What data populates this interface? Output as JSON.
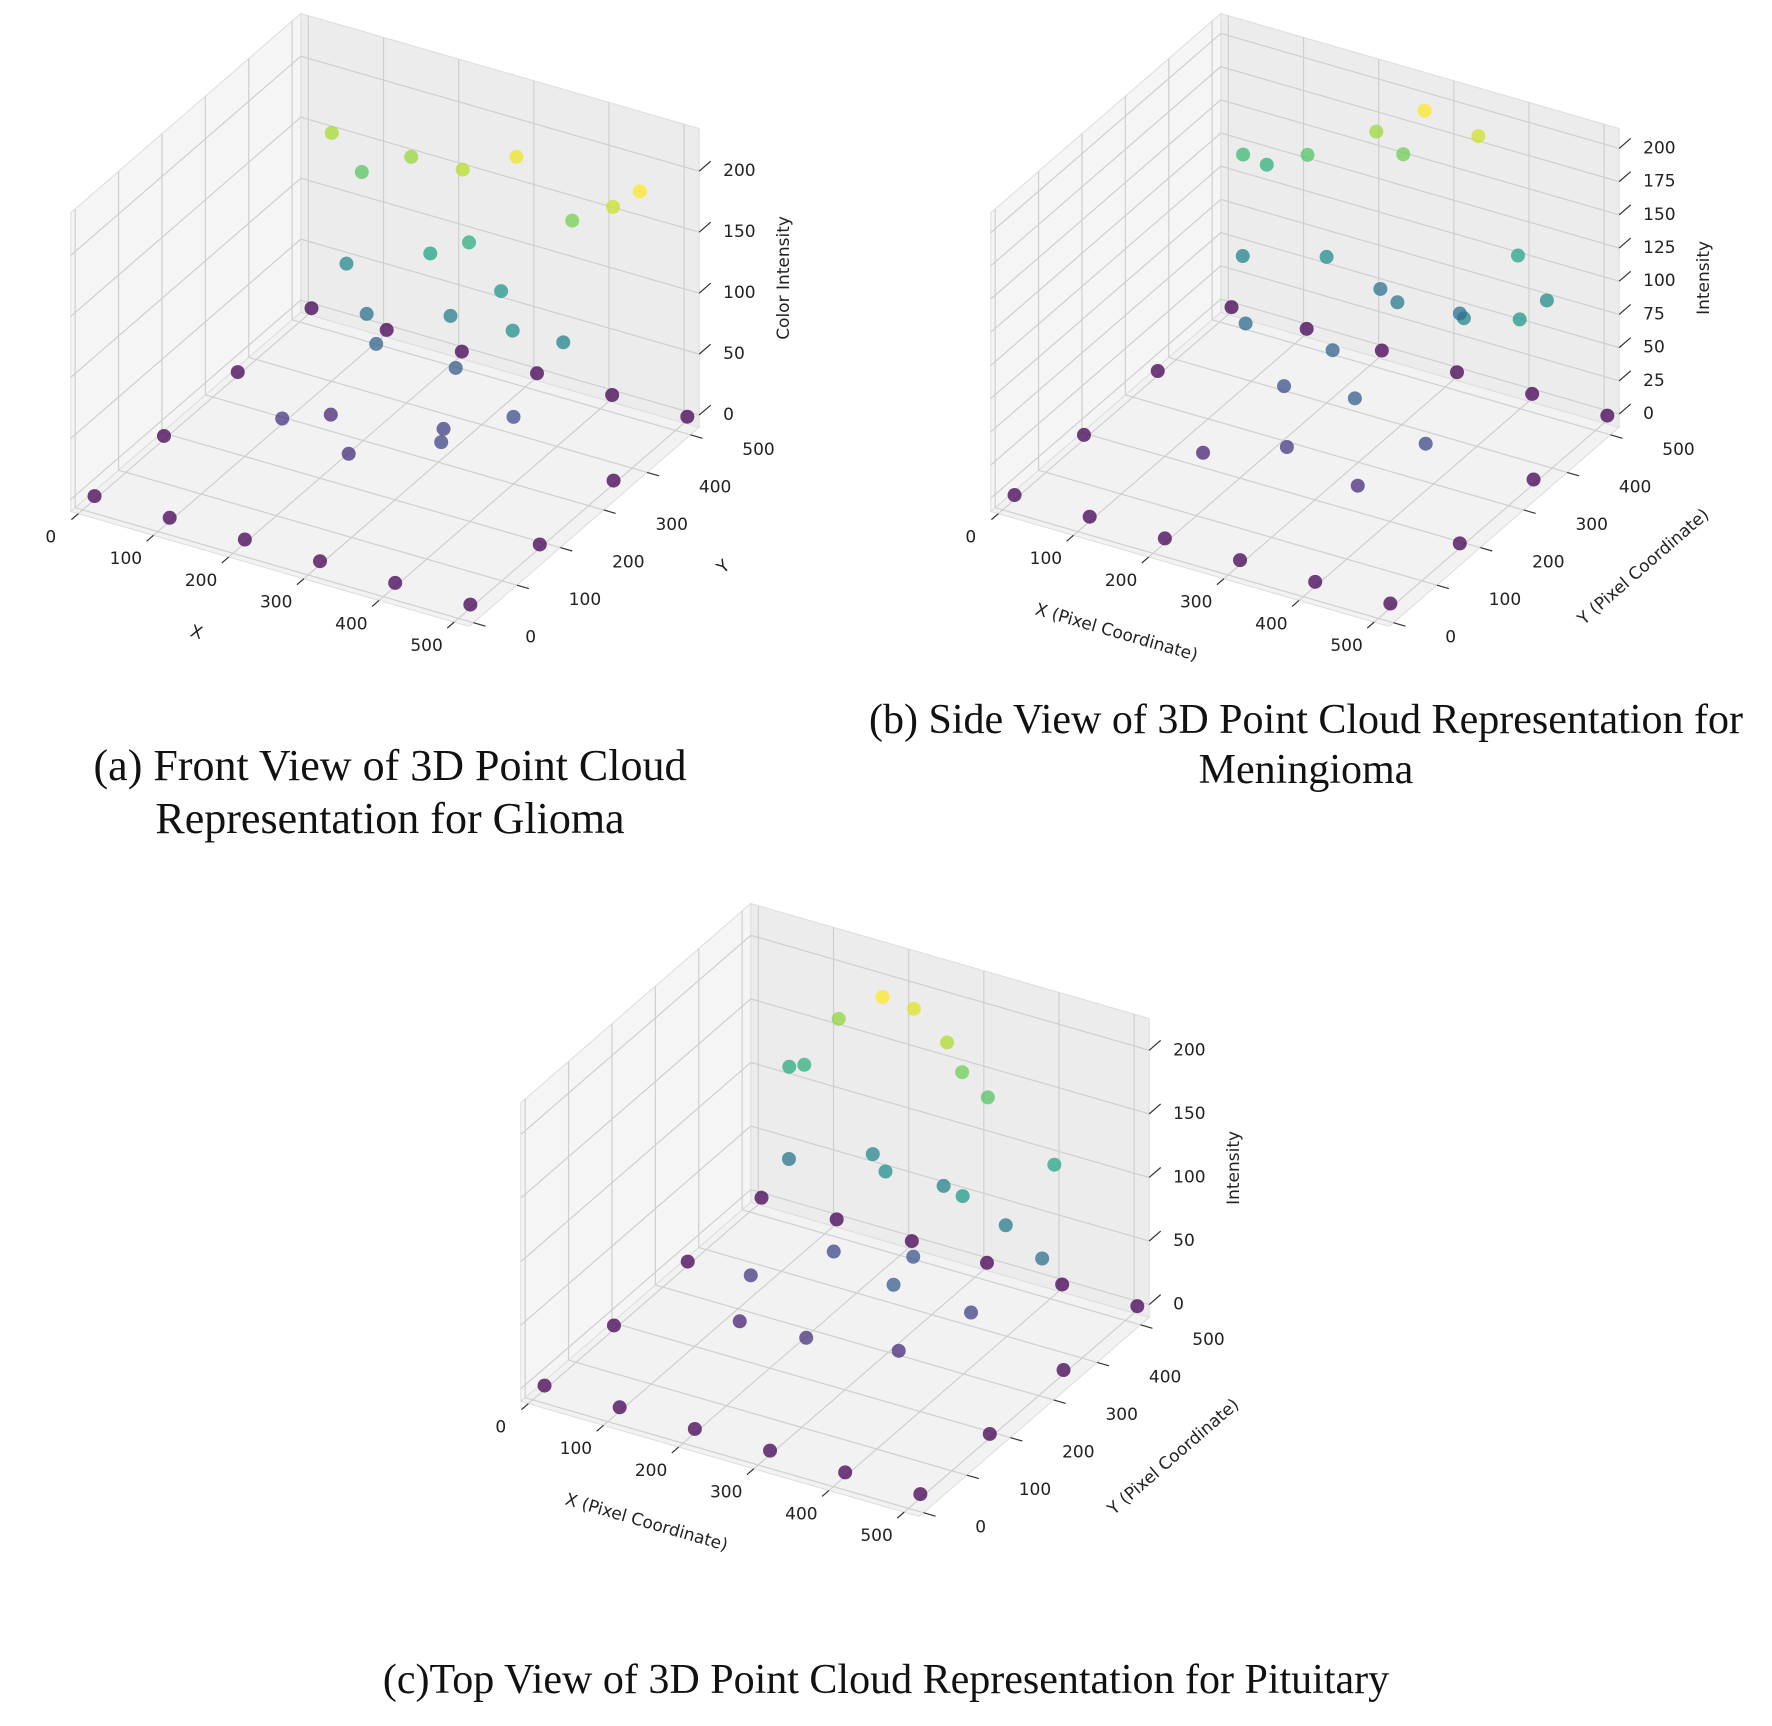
{
  "chart_data": [
    {
      "type": "scatter3d",
      "caption": "(a)  Front View of 3D Point Cloud Representation for Glioma",
      "xlabel": "X",
      "ylabel": "Y",
      "zlabel": "Color Intensity",
      "colormap": "viridis",
      "xlim": [
        -10,
        520
      ],
      "ylim": [
        -10,
        520
      ],
      "zlim": [
        -10,
        235
      ],
      "xticks": [
        0,
        100,
        200,
        300,
        400,
        500
      ],
      "yticks": [
        0,
        100,
        200,
        300,
        400,
        500
      ],
      "zticks": [
        0,
        50,
        100,
        150,
        200
      ],
      "x": [
        10,
        110,
        210,
        310,
        410,
        510,
        10,
        510,
        10,
        510,
        10,
        110,
        210,
        310,
        410,
        510,
        150,
        250,
        350,
        200,
        300,
        400,
        180,
        330,
        120,
        220,
        320,
        420,
        170,
        270,
        370,
        100,
        160,
        240,
        300,
        380,
        440,
        260,
        60,
        470
      ],
      "y": [
        10,
        10,
        10,
        10,
        10,
        10,
        170,
        170,
        340,
        340,
        510,
        510,
        510,
        510,
        510,
        510,
        200,
        180,
        220,
        330,
        340,
        300,
        260,
        260,
        400,
        420,
        410,
        380,
        360,
        380,
        350,
        470,
        480,
        460,
        480,
        470,
        460,
        440,
        470,
        470
      ],
      "z": [
        0,
        0,
        0,
        0,
        0,
        0,
        0,
        0,
        0,
        0,
        0,
        0,
        0,
        0,
        0,
        0,
        30,
        25,
        40,
        60,
        55,
        45,
        20,
        35,
        90,
        110,
        100,
        85,
        70,
        80,
        95,
        140,
        160,
        170,
        185,
        150,
        175,
        120,
        165,
        190
      ]
    },
    {
      "type": "scatter3d",
      "caption": "(b) Side View of 3D Point Cloud Representation for  Meningioma",
      "xlabel": "X (Pixel Coordinate)",
      "ylabel": "Y (Pixel Coordinate)",
      "zlabel": "Intensity",
      "colormap": "viridis",
      "xlim": [
        -10,
        520
      ],
      "ylim": [
        -10,
        520
      ],
      "zlim": [
        -10,
        215
      ],
      "xticks": [
        0,
        100,
        200,
        300,
        400,
        500
      ],
      "yticks": [
        0,
        100,
        200,
        300,
        400,
        500
      ],
      "zticks": [
        0,
        25,
        50,
        75,
        100,
        125,
        150,
        175,
        200
      ],
      "x": [
        10,
        110,
        210,
        310,
        410,
        510,
        10,
        510,
        10,
        510,
        10,
        110,
        210,
        310,
        410,
        510,
        180,
        280,
        380,
        230,
        330,
        430,
        150,
        260,
        100,
        200,
        300,
        400,
        480,
        260,
        360,
        80,
        140,
        220,
        290,
        350,
        420,
        470,
        60,
        250
      ],
      "y": [
        10,
        10,
        10,
        10,
        10,
        10,
        170,
        170,
        340,
        340,
        510,
        510,
        510,
        510,
        510,
        510,
        150,
        170,
        160,
        250,
        240,
        230,
        300,
        310,
        380,
        400,
        390,
        370,
        360,
        420,
        430,
        470,
        460,
        480,
        470,
        490,
        460,
        440,
        450,
        490
      ],
      "z": [
        0,
        0,
        0,
        0,
        0,
        0,
        0,
        0,
        0,
        0,
        0,
        0,
        0,
        0,
        0,
        0,
        20,
        35,
        25,
        50,
        60,
        45,
        70,
        65,
        90,
        100,
        85,
        95,
        110,
        80,
        75,
        130,
        150,
        175,
        205,
        190,
        120,
        100,
        140,
        160
      ]
    },
    {
      "type": "scatter3d",
      "caption": "(c)Top View of 3D Point Cloud Representation for Pituitary",
      "xlabel": "X (Pixel Coordinate)",
      "ylabel": "Y (Pixel Coordinate)",
      "zlabel": "Intensity",
      "colormap": "viridis",
      "xlim": [
        -10,
        520
      ],
      "ylim": [
        -10,
        520
      ],
      "zlim": [
        -10,
        225
      ],
      "xticks": [
        0,
        100,
        200,
        300,
        400,
        500
      ],
      "yticks": [
        0,
        100,
        200,
        300,
        400,
        500
      ],
      "zticks": [
        0,
        50,
        100,
        150,
        200
      ],
      "x": [
        10,
        110,
        210,
        310,
        410,
        510,
        10,
        510,
        10,
        510,
        10,
        110,
        210,
        310,
        410,
        510,
        160,
        260,
        360,
        210,
        310,
        410,
        140,
        330,
        110,
        210,
        310,
        410,
        470,
        250,
        370,
        90,
        130,
        200,
        230,
        280,
        340,
        440,
        70,
        300
      ],
      "y": [
        10,
        10,
        10,
        10,
        10,
        10,
        170,
        170,
        340,
        340,
        510,
        510,
        510,
        510,
        510,
        510,
        200,
        180,
        220,
        330,
        340,
        300,
        260,
        260,
        400,
        420,
        410,
        380,
        360,
        380,
        350,
        470,
        480,
        460,
        480,
        470,
        460,
        440,
        470,
        470
      ],
      "z": [
        0,
        0,
        0,
        0,
        0,
        0,
        0,
        0,
        0,
        0,
        0,
        0,
        0,
        0,
        0,
        0,
        20,
        30,
        25,
        45,
        55,
        40,
        35,
        60,
        80,
        95,
        90,
        85,
        75,
        100,
        110,
        130,
        170,
        205,
        195,
        180,
        150,
        120,
        125,
        160
      ]
    }
  ]
}
